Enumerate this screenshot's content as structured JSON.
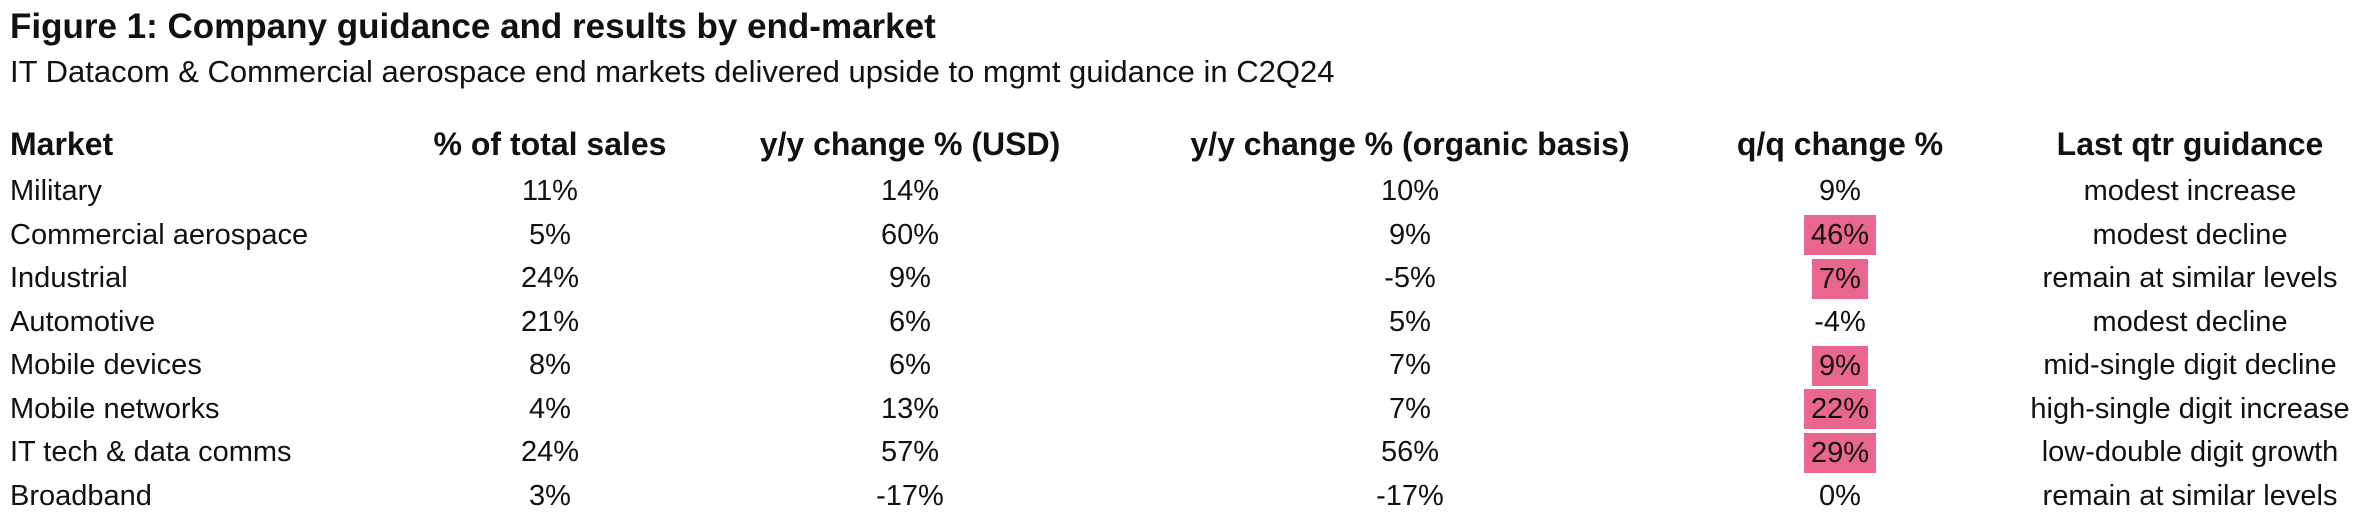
{
  "title": "Figure 1: Company guidance and results by end-market",
  "subtitle": "IT Datacom & Commercial aerospace end markets delivered upside to mgmt guidance in C2Q24",
  "highlight_color": "#e9678e",
  "table": {
    "headers": [
      "Market",
      "% of total sales",
      "y/y change % (USD)",
      "y/y change % (organic basis)",
      "q/q change %",
      "Last qtr guidance"
    ],
    "rows": [
      {
        "market": "Military",
        "pct_sales": "11%",
        "yy_usd": "14%",
        "yy_organic": "10%",
        "qq": "9%",
        "qq_highlighted": false,
        "guidance": "modest increase"
      },
      {
        "market": "Commercial aerospace",
        "pct_sales": "5%",
        "yy_usd": "60%",
        "yy_organic": "9%",
        "qq": "46%",
        "qq_highlighted": true,
        "guidance": "modest decline"
      },
      {
        "market": "Industrial",
        "pct_sales": "24%",
        "yy_usd": "9%",
        "yy_organic": "-5%",
        "qq": "7%",
        "qq_highlighted": true,
        "guidance": "remain at similar levels"
      },
      {
        "market": "Automotive",
        "pct_sales": "21%",
        "yy_usd": "6%",
        "yy_organic": "5%",
        "qq": "-4%",
        "qq_highlighted": false,
        "guidance": "modest decline"
      },
      {
        "market": "Mobile devices",
        "pct_sales": "8%",
        "yy_usd": "6%",
        "yy_organic": "7%",
        "qq": "9%",
        "qq_highlighted": true,
        "guidance": "mid-single digit decline"
      },
      {
        "market": "Mobile networks",
        "pct_sales": "4%",
        "yy_usd": "13%",
        "yy_organic": "7%",
        "qq": "22%",
        "qq_highlighted": true,
        "guidance": "high-single digit increase"
      },
      {
        "market": "IT tech & data comms",
        "pct_sales": "24%",
        "yy_usd": "57%",
        "yy_organic": "56%",
        "qq": "29%",
        "qq_highlighted": true,
        "guidance": "low-double digit growth"
      },
      {
        "market": "Broadband",
        "pct_sales": "3%",
        "yy_usd": "-17%",
        "yy_organic": "-17%",
        "qq": "0%",
        "qq_highlighted": false,
        "guidance": "remain at similar levels"
      }
    ]
  }
}
